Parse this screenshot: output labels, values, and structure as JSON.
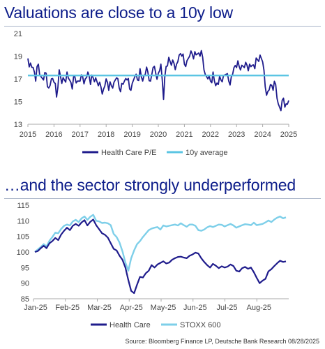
{
  "titles": {
    "top": "Valuations are close to a 10y low",
    "bottom": "…and the sector strongly underperformed"
  },
  "source": "Source: Bloomberg Finance LP, Deutsche Bank Research 08/28/2025",
  "colors": {
    "health_care": "#1f1c8c",
    "average": "#5bc5e3",
    "stoxx": "#7ecfe9",
    "axis": "#aaaaaa"
  },
  "chart_data": [
    {
      "type": "line",
      "title": "Valuations are close to a 10y low",
      "xlabel": "",
      "ylabel": "",
      "xlim": [
        2015,
        2025
      ],
      "ylim": [
        13,
        21
      ],
      "x_ticks": [
        "2015",
        "2016",
        "2017",
        "2018",
        "2019",
        "2020",
        "2021",
        "2022",
        "2023",
        "2024",
        "2025"
      ],
      "y_ticks": [
        13,
        15,
        17,
        19,
        21
      ],
      "grid": false,
      "legend": "bottom-center",
      "series": [
        {
          "name": "Health Care P/E",
          "x": [
            2015.0,
            2015.1,
            2015.2,
            2015.3,
            2015.4,
            2015.5,
            2015.6,
            2015.7,
            2015.8,
            2015.9,
            2016.0,
            2016.1,
            2016.2,
            2016.3,
            2016.4,
            2016.5,
            2016.6,
            2016.7,
            2016.8,
            2016.9,
            2017.0,
            2017.1,
            2017.2,
            2017.3,
            2017.4,
            2017.5,
            2017.6,
            2017.7,
            2017.8,
            2017.9,
            2018.0,
            2018.1,
            2018.2,
            2018.3,
            2018.4,
            2018.5,
            2018.6,
            2018.7,
            2018.8,
            2018.9,
            2019.0,
            2019.1,
            2019.2,
            2019.3,
            2019.4,
            2019.5,
            2019.6,
            2019.7,
            2019.8,
            2019.9,
            2020.0,
            2020.1,
            2020.2,
            2020.3,
            2020.4,
            2020.5,
            2020.6,
            2020.7,
            2020.8,
            2020.9,
            2021.0,
            2021.1,
            2021.2,
            2021.3,
            2021.4,
            2021.5,
            2021.6,
            2021.7,
            2021.8,
            2021.9,
            2022.0,
            2022.1,
            2022.2,
            2022.3,
            2022.4,
            2022.5,
            2022.6,
            2022.7,
            2022.8,
            2022.9,
            2023.0,
            2023.1,
            2023.2,
            2023.3,
            2023.4,
            2023.5,
            2023.6,
            2023.7,
            2023.8,
            2023.9,
            2024.0,
            2024.1,
            2024.2,
            2024.3,
            2024.4,
            2024.5,
            2024.6,
            2024.7,
            2024.8,
            2024.9,
            2025.0
          ],
          "values": [
            18.8,
            18.4,
            18.0,
            16.8,
            18.3,
            17.2,
            16.9,
            17.5,
            16.2,
            17.0,
            16.7,
            15.4,
            17.8,
            16.6,
            16.9,
            17.6,
            16.9,
            16.1,
            17.2,
            16.8,
            16.8,
            17.2,
            17.0,
            17.6,
            16.5,
            17.1,
            17.1,
            16.4,
            16.3,
            16.1,
            17.0,
            16.0,
            16.4,
            16.7,
            17.1,
            16.2,
            16.6,
            16.8,
            16.9,
            16.1,
            16.6,
            17.2,
            16.9,
            17.9,
            16.8,
            17.4,
            17.6,
            16.8,
            18.0,
            17.5,
            17.5,
            18.3,
            15.2,
            18.1,
            18.9,
            18.2,
            18.4,
            18.3,
            19.1,
            19.0,
            18.3,
            18.6,
            19.0,
            19.2,
            19.4,
            19.2,
            19.0,
            18.9,
            17.4,
            17.0,
            16.8,
            17.6,
            16.4,
            16.5,
            16.9,
            17.3,
            17.4,
            16.8,
            17.2,
            18.0,
            18.0,
            18.1,
            18.2,
            18.0,
            18.2,
            18.3,
            18.2,
            17.9,
            18.7,
            19.1,
            18.5,
            16.3,
            15.9,
            16.5,
            16.0,
            16.5,
            14.8,
            14.2,
            15.3,
            14.8,
            15.1
          ]
        },
        {
          "name": "10y average",
          "x": [
            2015,
            2025
          ],
          "values": [
            17.3,
            17.3
          ]
        }
      ]
    },
    {
      "type": "line",
      "title": "…and the sector strongly underperformed",
      "xlabel": "",
      "ylabel": "",
      "x_ticks": [
        "Jan-25",
        "Feb-25",
        "Mar-25",
        "Apr-25",
        "May-25",
        "Jun-25",
        "Jul-25",
        "Aug-25"
      ],
      "y_ticks": [
        85,
        90,
        95,
        100,
        105,
        110,
        115
      ],
      "ylim": [
        85,
        115
      ],
      "grid": false,
      "legend": "bottom-center",
      "series": [
        {
          "name": "Health Care",
          "values": [
            100.0,
            100.3,
            101.2,
            102.0,
            101.2,
            102.8,
            103.5,
            104.5,
            103.8,
            105.6,
            106.8,
            107.8,
            107.0,
            108.4,
            109.0,
            108.4,
            109.5,
            110.2,
            108.5,
            109.7,
            110.4,
            108.6,
            107.3,
            106.0,
            105.5,
            104.6,
            102.8,
            101.0,
            100.5,
            98.8,
            97.5,
            95.0,
            91.0,
            87.5,
            86.8,
            89.5,
            92.0,
            91.8,
            93.2,
            94.0,
            95.8,
            95.0,
            96.0,
            96.5,
            97.0,
            96.3,
            96.6,
            97.5,
            98.0,
            98.4,
            98.5,
            98.2,
            98.0,
            98.8,
            99.2,
            99.8,
            99.5,
            98.0,
            96.8,
            95.8,
            95.0,
            96.2,
            95.6,
            94.8,
            95.4,
            95.0,
            95.3,
            96.0,
            95.5,
            94.0,
            93.7,
            94.8,
            95.2,
            94.6,
            95.0,
            93.5,
            91.7,
            90.0,
            90.8,
            91.4,
            93.8,
            94.5,
            95.5,
            96.4,
            97.2,
            96.8,
            97.0
          ]
        },
        {
          "name": "STOXX 600",
          "values": [
            100.0,
            100.8,
            101.6,
            102.5,
            101.8,
            103.6,
            104.8,
            106.2,
            106.0,
            107.4,
            108.4,
            108.8,
            108.5,
            109.8,
            110.3,
            109.6,
            110.8,
            111.4,
            110.3,
            111.3,
            111.9,
            110.0,
            109.8,
            109.3,
            109.4,
            109.2,
            108.6,
            105.8,
            104.8,
            103.0,
            100.2,
            96.6,
            94.0,
            98.0,
            100.5,
            102.5,
            103.5,
            104.8,
            105.9,
            107.0,
            107.5,
            107.8,
            108.0,
            107.2,
            108.5,
            108.2,
            108.4,
            108.6,
            108.8,
            108.5,
            109.2,
            108.6,
            108.1,
            108.8,
            108.8,
            108.4,
            107.0,
            106.8,
            107.2,
            107.9,
            108.3,
            108.0,
            108.4,
            108.8,
            108.7,
            108.2,
            108.6,
            109.0,
            108.5,
            107.8,
            108.2,
            108.6,
            108.9,
            108.8,
            108.6,
            109.4,
            108.6,
            108.8,
            109.0,
            109.5,
            110.1,
            109.6,
            110.4,
            111.0,
            111.4,
            110.8,
            111.1
          ]
        }
      ]
    }
  ]
}
